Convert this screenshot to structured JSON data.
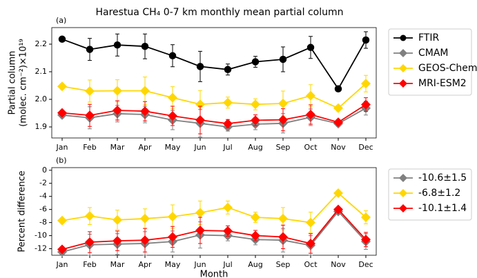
{
  "title": "Harestua CH₄ 0-7 km monthly mean partial column",
  "chart_data": [
    {
      "type": "line",
      "panel_label": "(a)",
      "ylabel": [
        "Partial column",
        "(molec. cm⁻²)×10¹⁹"
      ],
      "categories": [
        "Jan",
        "Feb",
        "Mar",
        "Apr",
        "May",
        "Jun",
        "Jul",
        "Aug",
        "Sep",
        "Oct",
        "Nov",
        "Dec"
      ],
      "ylim": [
        1.86,
        2.26
      ],
      "yticks": [
        1.9,
        {
          "value": 2,
          "label": "2.0"
        },
        2.1,
        2.2
      ],
      "legend": "outside-right",
      "series": [
        {
          "name": "FTIR",
          "color": "#000000",
          "marker": "circle",
          "values": [
            2.218,
            2.181,
            2.197,
            2.192,
            2.158,
            2.119,
            2.108,
            2.136,
            2.145,
            2.188,
            2.038,
            2.215
          ],
          "errors": [
            0.004,
            0.04,
            0.04,
            0.045,
            0.04,
            0.055,
            0.02,
            0.02,
            0.045,
            0.04,
            0.002,
            0.03
          ]
        },
        {
          "name": "CMAM",
          "color": "#808080",
          "marker": "diamond",
          "values": [
            1.943,
            1.933,
            1.948,
            1.945,
            1.925,
            1.913,
            1.9,
            1.91,
            1.913,
            1.935,
            1.912,
            1.968
          ],
          "errors": [
            0.01,
            0.04,
            0.03,
            0.03,
            0.035,
            0.05,
            0.015,
            0.02,
            0.035,
            0.03,
            0.01,
            0.025
          ]
        },
        {
          "name": "GEOS-Chem",
          "color": "#FFD700",
          "marker": "diamond",
          "values": [
            2.047,
            2.03,
            2.031,
            2.031,
            2.006,
            1.982,
            1.988,
            1.982,
            1.985,
            2.013,
            1.968,
            2.057
          ],
          "errors": [
            0.01,
            0.04,
            0.04,
            0.05,
            0.04,
            0.05,
            0.02,
            0.02,
            0.045,
            0.04,
            0.01,
            0.03
          ]
        },
        {
          "name": "MRI-ESM2",
          "color": "#FF0000",
          "marker": "diamond",
          "values": [
            1.951,
            1.942,
            1.96,
            1.957,
            1.94,
            1.925,
            1.912,
            1.924,
            1.926,
            1.945,
            1.917,
            1.981
          ],
          "errors": [
            0.01,
            0.04,
            0.035,
            0.035,
            0.035,
            0.05,
            0.015,
            0.02,
            0.04,
            0.035,
            0.01,
            0.025
          ]
        }
      ]
    },
    {
      "type": "line",
      "panel_label": "(b)",
      "ylabel": [
        "Percent difference"
      ],
      "xlabel": "Month",
      "categories": [
        "Jan",
        "Feb",
        "Mar",
        "Apr",
        "May",
        "Jun",
        "Jul",
        "Aug",
        "Sep",
        "Oct",
        "Nov",
        "Dec"
      ],
      "ylim": [
        -13,
        0.4
      ],
      "yticks": [
        -12,
        -10,
        -8,
        -6,
        -4,
        -2,
        0
      ],
      "legend": "outside-right",
      "series": [
        {
          "name": "-10.6±1.5",
          "color": "#808080",
          "marker": "diamond",
          "values": [
            -12.5,
            -11.4,
            -11.3,
            -11.2,
            -10.9,
            -9.9,
            -10.0,
            -10.6,
            -10.7,
            -11.5,
            -6.3,
            -10.9
          ],
          "errors": [
            0.4,
            1.6,
            1.6,
            1.8,
            1.6,
            2.0,
            0.8,
            0.8,
            1.8,
            1.5,
            0.3,
            1.2
          ]
        },
        {
          "name": "-6.8±1.2",
          "color": "#FFD700",
          "marker": "diamond",
          "values": [
            -7.7,
            -7.0,
            -7.6,
            -7.4,
            -7.1,
            -6.5,
            -5.7,
            -7.2,
            -7.4,
            -8.0,
            -3.5,
            -7.2
          ],
          "errors": [
            0.3,
            1.3,
            1.5,
            1.5,
            1.8,
            1.8,
            1.0,
            0.8,
            1.7,
            1.6,
            0.2,
            1.0
          ]
        },
        {
          "name": "-10.1±1.4",
          "color": "#FF0000",
          "marker": "diamond",
          "values": [
            -12.1,
            -11.0,
            -10.8,
            -10.7,
            -10.2,
            -9.2,
            -9.3,
            -10.0,
            -10.2,
            -11.2,
            -6.0,
            -10.6
          ],
          "errors": [
            0.4,
            1.6,
            1.5,
            1.8,
            1.6,
            2.0,
            0.8,
            0.8,
            1.8,
            1.5,
            0.3,
            1.1
          ]
        }
      ]
    }
  ]
}
